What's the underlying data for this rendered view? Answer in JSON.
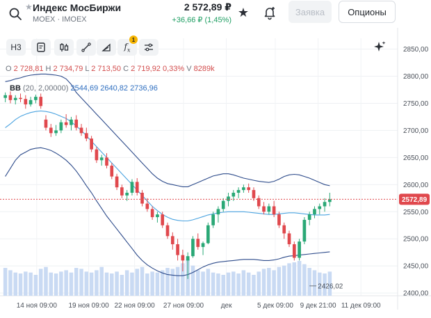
{
  "header": {
    "ticker_name": "Индекс МосБиржи",
    "ticker_sub": "MOEX · IMOEX",
    "price": "2 572,89 ₽",
    "change": "+36,66 ₽ (1,45%)",
    "order_label": "Заявка",
    "options_label": "Опционы"
  },
  "toolbar": {
    "timeframe_label": "Н3",
    "indicator_badge": "1"
  },
  "ohlc": {
    "o_key": "O",
    "o_val": "2 728,81",
    "h_key": "H",
    "h_val": "2 734,79",
    "l_key": "L",
    "l_val": "2 713,50",
    "c_key": "C",
    "c_val": "2 719,92",
    "pct": "0,33%",
    "vol_key": "V",
    "vol_val": "8289k"
  },
  "bb": {
    "name": "BB",
    "params": "(20, 2,00000)",
    "lower": "2544,69",
    "middle": "2640,82",
    "upper": "2736,96"
  },
  "chart_data": {
    "type": "candlestick",
    "y_ticks": [
      "2850,00",
      "2800,00",
      "2750,00",
      "2700,00",
      "2650,00",
      "2600,00",
      "2550,00",
      "2500,00",
      "2450,00",
      "2400,00"
    ],
    "y_tick_values": [
      2850,
      2800,
      2750,
      2700,
      2650,
      2600,
      2550,
      2500,
      2450,
      2400
    ],
    "ylim": [
      2395,
      2870
    ],
    "x_ticks": [
      "14 ноя 09:00",
      "19 ноя 09:00",
      "22 ноя 09:00",
      "27 ноя 09:00",
      "дек",
      "5 дек 09:00",
      "9 дек 21:00",
      "11 дек 09:00"
    ],
    "x_tick_positions": [
      12,
      29,
      44,
      60,
      74,
      90,
      104,
      118
    ],
    "x_range": [
      0,
      130
    ],
    "current_price": 2572.89,
    "current_price_label": "2572,89",
    "low_marker_label": "2426,02",
    "low_marker_value": 2426.02,
    "low_marker_x": 60,
    "colors": {
      "up": "#2aa876",
      "down": "#e0484d",
      "bb": "#2f6fc0",
      "bb_mid": "#4aa3e0",
      "volume": "#c9daf3",
      "price_line": "#e0484d"
    },
    "candles": [
      [
        2760,
        2770,
        2752,
        2765
      ],
      [
        2765,
        2772,
        2750,
        2756
      ],
      [
        2756,
        2765,
        2748,
        2760
      ],
      [
        2760,
        2768,
        2752,
        2758
      ],
      [
        2758,
        2765,
        2740,
        2748
      ],
      [
        2748,
        2762,
        2744,
        2756
      ],
      [
        2756,
        2766,
        2750,
        2762
      ],
      [
        2762,
        2768,
        2740,
        2745
      ],
      [
        2720,
        2728,
        2700,
        2705
      ],
      [
        2705,
        2712,
        2688,
        2695
      ],
      [
        2695,
        2710,
        2690,
        2700
      ],
      [
        2700,
        2720,
        2695,
        2715
      ],
      [
        2715,
        2730,
        2705,
        2710
      ],
      [
        2710,
        2725,
        2700,
        2720
      ],
      [
        2720,
        2728,
        2700,
        2705
      ],
      [
        2705,
        2712,
        2690,
        2695
      ],
      [
        2695,
        2705,
        2680,
        2685
      ],
      [
        2685,
        2690,
        2660,
        2665
      ],
      [
        2665,
        2670,
        2640,
        2645
      ],
      [
        2645,
        2655,
        2635,
        2650
      ],
      [
        2650,
        2658,
        2630,
        2635
      ],
      [
        2635,
        2640,
        2610,
        2615
      ],
      [
        2615,
        2620,
        2590,
        2595
      ],
      [
        2595,
        2600,
        2575,
        2580
      ],
      [
        2580,
        2590,
        2570,
        2585
      ],
      [
        2585,
        2610,
        2580,
        2605
      ],
      [
        2605,
        2612,
        2580,
        2585
      ],
      [
        2585,
        2590,
        2560,
        2565
      ],
      [
        2565,
        2575,
        2550,
        2555
      ],
      [
        2555,
        2560,
        2535,
        2540
      ],
      [
        2540,
        2550,
        2530,
        2545
      ],
      [
        2545,
        2550,
        2520,
        2525
      ],
      [
        2525,
        2530,
        2500,
        2505
      ],
      [
        2505,
        2512,
        2480,
        2490
      ],
      [
        2490,
        2500,
        2460,
        2470
      ],
      [
        2470,
        2480,
        2440,
        2460
      ],
      [
        2460,
        2475,
        2426,
        2468
      ],
      [
        2468,
        2505,
        2465,
        2500
      ],
      [
        2500,
        2510,
        2480,
        2485
      ],
      [
        2485,
        2495,
        2470,
        2492
      ],
      [
        2492,
        2530,
        2490,
        2525
      ],
      [
        2525,
        2550,
        2520,
        2545
      ],
      [
        2545,
        2560,
        2530,
        2555
      ],
      [
        2555,
        2575,
        2550,
        2570
      ],
      [
        2570,
        2585,
        2560,
        2578
      ],
      [
        2578,
        2590,
        2570,
        2585
      ],
      [
        2585,
        2595,
        2575,
        2590
      ],
      [
        2590,
        2600,
        2585,
        2595
      ],
      [
        2595,
        2602,
        2585,
        2590
      ],
      [
        2590,
        2595,
        2570,
        2575
      ],
      [
        2575,
        2580,
        2555,
        2560
      ],
      [
        2560,
        2568,
        2545,
        2550
      ],
      [
        2550,
        2565,
        2545,
        2560
      ],
      [
        2560,
        2570,
        2540,
        2545
      ],
      [
        2545,
        2550,
        2520,
        2525
      ],
      [
        2525,
        2530,
        2500,
        2510
      ],
      [
        2510,
        2515,
        2485,
        2490
      ],
      [
        2490,
        2495,
        2460,
        2465
      ],
      [
        2465,
        2500,
        2460,
        2495
      ],
      [
        2495,
        2540,
        2490,
        2535
      ],
      [
        2535,
        2550,
        2525,
        2545
      ],
      [
        2545,
        2560,
        2538,
        2555
      ],
      [
        2555,
        2565,
        2545,
        2560
      ],
      [
        2560,
        2575,
        2550,
        2568
      ],
      [
        2568,
        2585,
        2560,
        2573
      ]
    ],
    "volumes": [
      60,
      55,
      50,
      48,
      52,
      50,
      45,
      58,
      62,
      50,
      48,
      52,
      55,
      50,
      60,
      58,
      52,
      50,
      55,
      62,
      50,
      48,
      52,
      45,
      55,
      50,
      58,
      62,
      48,
      52,
      50,
      55,
      60,
      58,
      62,
      70,
      78,
      65,
      55,
      52,
      58,
      50,
      48,
      45,
      50,
      52,
      48,
      55,
      50,
      45,
      52,
      58,
      60,
      55,
      62,
      65,
      70,
      72,
      75,
      68,
      60,
      55,
      50,
      48,
      52
    ],
    "bb_upper": [
      2790,
      2792,
      2795,
      2797,
      2800,
      2802,
      2803,
      2804,
      2804,
      2803,
      2802,
      2800,
      2795,
      2785,
      2770,
      2760,
      2750,
      2740,
      2730,
      2720,
      2710,
      2700,
      2690,
      2680,
      2670,
      2660,
      2650,
      2640,
      2630,
      2620,
      2612,
      2606,
      2602,
      2600,
      2598,
      2596,
      2596,
      2600,
      2604,
      2608,
      2612,
      2616,
      2618,
      2620,
      2620,
      2618,
      2615,
      2612,
      2610,
      2608,
      2606,
      2605,
      2604,
      2606,
      2610,
      2615,
      2618,
      2619,
      2618,
      2615,
      2612,
      2608,
      2604,
      2600,
      2598
    ],
    "bb_middle": [
      2705,
      2712,
      2720,
      2726,
      2730,
      2733,
      2735,
      2736,
      2735,
      2733,
      2730,
      2726,
      2722,
      2716,
      2708,
      2700,
      2690,
      2680,
      2670,
      2660,
      2650,
      2640,
      2630,
      2620,
      2610,
      2600,
      2590,
      2580,
      2570,
      2560,
      2552,
      2545,
      2540,
      2536,
      2534,
      2533,
      2533,
      2535,
      2538,
      2541,
      2544,
      2546,
      2548,
      2549,
      2550,
      2550,
      2550,
      2550,
      2549,
      2548,
      2547,
      2546,
      2545,
      2545,
      2546,
      2547,
      2548,
      2548,
      2547,
      2546,
      2545,
      2544,
      2544,
      2544,
      2545
    ],
    "bb_lower": [
      2615,
      2630,
      2645,
      2655,
      2660,
      2665,
      2667,
      2668,
      2666,
      2663,
      2658,
      2652,
      2645,
      2636,
      2625,
      2612,
      2598,
      2585,
      2570,
      2556,
      2542,
      2530,
      2518,
      2506,
      2494,
      2482,
      2470,
      2460,
      2452,
      2446,
      2441,
      2437,
      2434,
      2433,
      2432,
      2432,
      2434,
      2438,
      2443,
      2448,
      2452,
      2455,
      2457,
      2458,
      2459,
      2460,
      2461,
      2462,
      2462,
      2462,
      2461,
      2460,
      2460,
      2461,
      2463,
      2466,
      2468,
      2469,
      2470,
      2471,
      2472,
      2473,
      2474,
      2475,
      2476
    ]
  }
}
